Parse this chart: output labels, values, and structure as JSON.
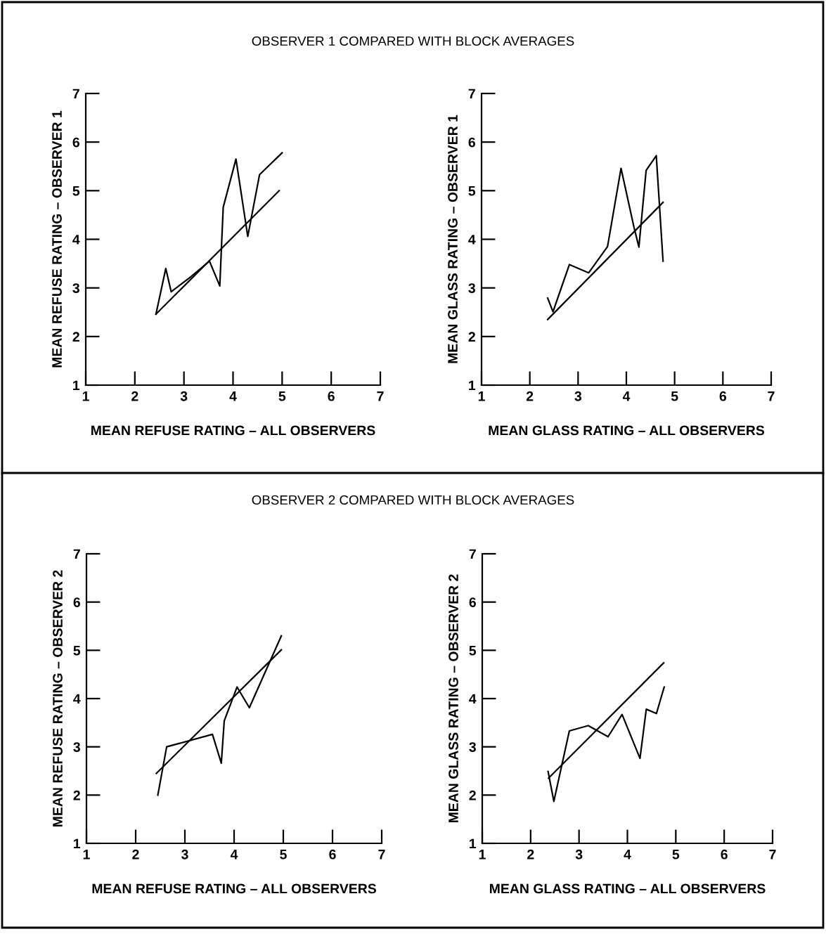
{
  "chart_data": [
    {
      "type": "line",
      "title": "OBSERVER 1 COMPARED WITH BLOCK AVERAGES",
      "xlabel": "MEAN REFUSE RATING – ALL OBSERVERS",
      "ylabel": "MEAN REFUSE RATING – OBSERVER 1",
      "xlim": [
        1,
        7
      ],
      "ylim": [
        1,
        7
      ],
      "xticks": [
        1,
        2,
        3,
        4,
        5,
        6,
        7
      ],
      "yticks": [
        1,
        2,
        3,
        4,
        5,
        6,
        7
      ],
      "grid": false,
      "legend": false,
      "series": [
        {
          "color": "#000000",
          "x": [
            2.43,
            2.63,
            2.74,
            3.14,
            3.52,
            3.73,
            3.8,
            4.06,
            4.3,
            4.54,
            5.0
          ],
          "values": [
            2.46,
            3.4,
            2.92,
            3.23,
            3.55,
            3.04,
            4.66,
            5.65,
            4.06,
            5.33,
            5.78
          ]
        },
        {
          "color": "#000000",
          "x": [
            2.43,
            4.94
          ],
          "values": [
            2.46,
            5.0
          ]
        }
      ]
    },
    {
      "type": "line",
      "xlabel": "MEAN GLASS RATING – ALL OBSERVERS",
      "ylabel": "MEAN GLASS RATING – OBSERVER 1",
      "xlim": [
        1,
        7
      ],
      "ylim": [
        1,
        7
      ],
      "xticks": [
        1,
        2,
        3,
        4,
        5,
        6,
        7
      ],
      "yticks": [
        1,
        2,
        3,
        4,
        5,
        6,
        7
      ],
      "grid": false,
      "legend": false,
      "series": [
        {
          "color": "#000000",
          "x": [
            2.37,
            2.48,
            2.82,
            3.22,
            3.61,
            3.89,
            4.16,
            4.26,
            4.41,
            4.62,
            4.76
          ],
          "values": [
            2.79,
            2.51,
            3.48,
            3.31,
            3.85,
            5.46,
            4.24,
            3.84,
            5.42,
            5.72,
            3.55
          ]
        },
        {
          "color": "#000000",
          "x": [
            2.37,
            4.76
          ],
          "values": [
            2.35,
            4.76
          ]
        }
      ]
    },
    {
      "type": "line",
      "title": "OBSERVER 2 COMPARED WITH BLOCK AVERAGES",
      "xlabel": "MEAN REFUSE RATING – ALL OBSERVERS",
      "ylabel": "MEAN REFUSE RATING – OBSERVER 2",
      "xlim": [
        1,
        7
      ],
      "ylim": [
        1,
        7
      ],
      "xticks": [
        1,
        2,
        3,
        4,
        5,
        6,
        7
      ],
      "yticks": [
        1,
        2,
        3,
        4,
        5,
        6,
        7
      ],
      "grid": false,
      "legend": false,
      "series": [
        {
          "color": "#000000",
          "x": [
            2.45,
            2.63,
            3.56,
            3.74,
            3.8,
            4.06,
            4.31,
            4.96
          ],
          "values": [
            2.0,
            3.0,
            3.26,
            2.66,
            3.54,
            4.24,
            3.81,
            5.3
          ]
        },
        {
          "color": "#000000",
          "x": [
            2.42,
            4.96
          ],
          "values": [
            2.45,
            5.01
          ]
        }
      ]
    },
    {
      "type": "line",
      "xlabel": "MEAN GLASS RATING – ALL OBSERVERS",
      "ylabel": "MEAN GLASS RATING – OBSERVER 2",
      "xlim": [
        1,
        7
      ],
      "ylim": [
        1,
        7
      ],
      "xticks": [
        1,
        2,
        3,
        4,
        5,
        6,
        7
      ],
      "yticks": [
        1,
        2,
        3,
        4,
        5,
        6,
        7
      ],
      "grid": false,
      "legend": false,
      "series": [
        {
          "color": "#000000",
          "x": [
            2.36,
            2.48,
            2.8,
            3.19,
            3.6,
            3.89,
            4.26,
            4.39,
            4.6,
            4.76
          ],
          "values": [
            2.49,
            1.87,
            3.33,
            3.44,
            3.21,
            3.67,
            2.76,
            3.78,
            3.69,
            4.24
          ]
        },
        {
          "color": "#000000",
          "x": [
            2.37,
            4.75
          ],
          "values": [
            2.35,
            4.74
          ]
        }
      ]
    }
  ]
}
